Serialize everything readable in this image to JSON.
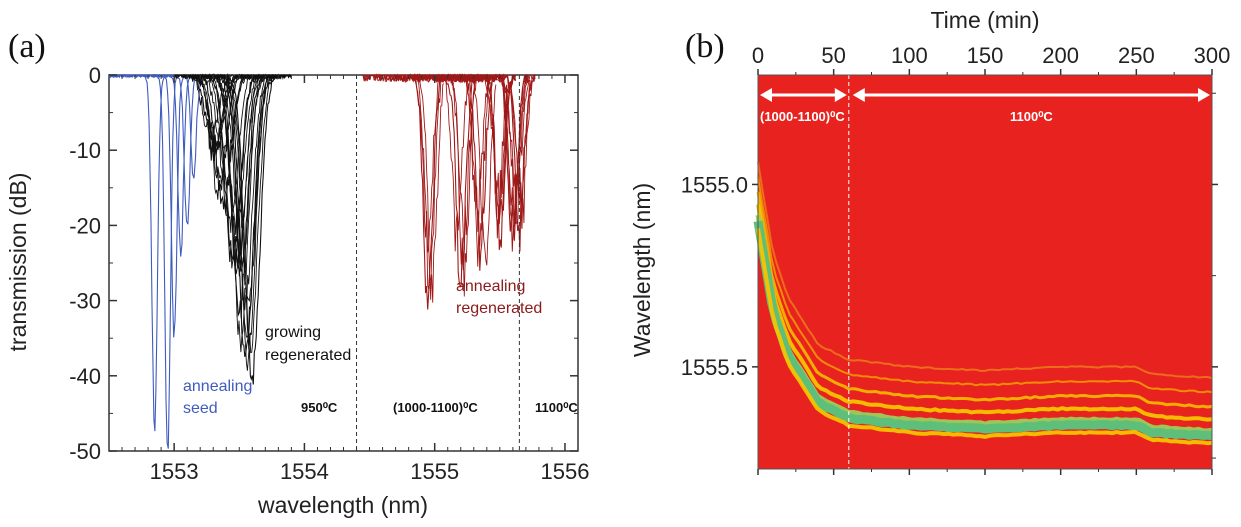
{
  "panel_a": {
    "label": "(a)",
    "annotations": {
      "annealing_seed_line1": "annealing",
      "annealing_seed_line2": "seed",
      "growing_line1": "growing",
      "growing_line2": "regenerated",
      "annealing_regen_line1": "annealing",
      "annealing_regen_line2": "regenerated",
      "temp1": "950⁰C",
      "temp2": "(1000-1100)⁰C",
      "temp3": "1100⁰C"
    }
  },
  "panel_b": {
    "label": "(b)",
    "annotations": {
      "range1": "(1000-1100)⁰C",
      "range2": "1100⁰C"
    }
  },
  "colors": {
    "seed": "#3f5bbf",
    "growing": "#111111",
    "regen": "#a01818",
    "map_background": "#e8231f",
    "map_band_yellow": "#f5c400",
    "map_band_green": "#5dbf7a"
  },
  "chart_data": [
    {
      "type": "line",
      "xlabel": "wavelength (nm)",
      "ylabel": "transmission (dB)",
      "xlim": [
        1552.5,
        1556.1
      ],
      "ylim": [
        -50,
        0
      ],
      "xticks": [
        1553,
        1554,
        1555,
        1556
      ],
      "yticks": [
        0,
        -10,
        -20,
        -30,
        -40,
        -50
      ],
      "grid": false,
      "dashed_separators_x": [
        1554.4,
        1555.65
      ],
      "series": [
        {
          "group": "annealing seed",
          "color": "#3f5bbf",
          "dips": [
            [
              1552.85,
              -47
            ],
            [
              1552.95,
              -50
            ],
            [
              1553.0,
              -35
            ],
            [
              1553.05,
              -24
            ],
            [
              1553.1,
              -21
            ],
            [
              1553.15,
              -13
            ]
          ]
        },
        {
          "group": "growing regenerated",
          "color": "#111111",
          "dips": [
            [
              1553.3,
              -10
            ],
            [
              1553.38,
              -18
            ],
            [
              1553.45,
              -25
            ],
            [
              1553.5,
              -32
            ],
            [
              1553.55,
              -38
            ],
            [
              1553.6,
              -40
            ]
          ]
        },
        {
          "group": "annealing regenerated",
          "color": "#a01818",
          "dips": [
            [
              1554.95,
              -30
            ],
            [
              1555.2,
              -27
            ],
            [
              1555.35,
              -24
            ],
            [
              1555.5,
              -22
            ],
            [
              1555.6,
              -21
            ],
            [
              1555.65,
              -20
            ]
          ]
        }
      ]
    },
    {
      "type": "heatmap",
      "xlabel": "Time (min)",
      "ylabel": "Wavelength (nm)",
      "xlim": [
        0,
        300
      ],
      "xticks": [
        0,
        50,
        100,
        150,
        200,
        250,
        300
      ],
      "yticks": [
        1555.0,
        1555.5
      ],
      "ytick_labels": [
        "1555.0",
        "1555.5"
      ],
      "ylim": [
        1554.7,
        1555.78
      ],
      "y_inverted": true,
      "dashed_separator_time": 60,
      "peak_trace": {
        "time": [
          0,
          10,
          20,
          40,
          60,
          100,
          150,
          200,
          250,
          260,
          300
        ],
        "wavelength": [
          1555.1,
          1555.35,
          1555.47,
          1555.6,
          1555.64,
          1555.66,
          1555.67,
          1555.66,
          1555.66,
          1555.68,
          1555.69
        ]
      }
    }
  ]
}
